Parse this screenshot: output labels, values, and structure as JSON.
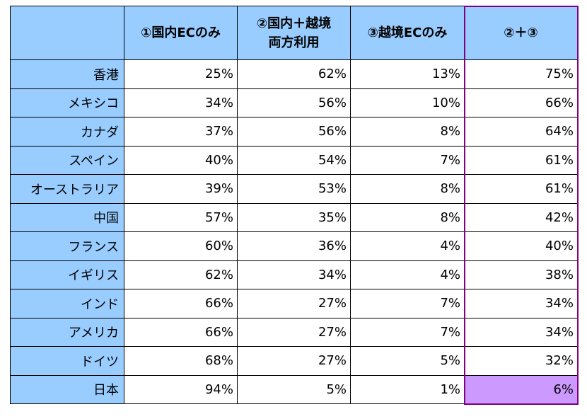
{
  "chart_data": {
    "type": "table",
    "columns": [
      "①国内ECのみ",
      "②国内＋越境\n両方利用",
      "③越境ECのみ",
      "②＋③"
    ],
    "rows": [
      {
        "label": "香港",
        "values": [
          "25%",
          "62%",
          "13%",
          "75%"
        ]
      },
      {
        "label": "メキシコ",
        "values": [
          "34%",
          "56%",
          "10%",
          "66%"
        ]
      },
      {
        "label": "カナダ",
        "values": [
          "37%",
          "56%",
          "8%",
          "64%"
        ]
      },
      {
        "label": "スペイン",
        "values": [
          "40%",
          "54%",
          "7%",
          "61%"
        ]
      },
      {
        "label": "オーストラリア",
        "values": [
          "39%",
          "53%",
          "8%",
          "61%"
        ]
      },
      {
        "label": "中国",
        "values": [
          "57%",
          "35%",
          "8%",
          "42%"
        ]
      },
      {
        "label": "フランス",
        "values": [
          "60%",
          "36%",
          "4%",
          "40%"
        ]
      },
      {
        "label": "イギリス",
        "values": [
          "62%",
          "34%",
          "4%",
          "38%"
        ]
      },
      {
        "label": "インド",
        "values": [
          "66%",
          "27%",
          "7%",
          "34%"
        ]
      },
      {
        "label": "アメリカ",
        "values": [
          "66%",
          "27%",
          "7%",
          "34%"
        ]
      },
      {
        "label": "ドイツ",
        "values": [
          "68%",
          "27%",
          "5%",
          "32%"
        ]
      },
      {
        "label": "日本",
        "values": [
          "94%",
          "5%",
          "1%",
          "6%"
        ]
      }
    ],
    "highlight": {
      "column": "②＋③",
      "row": "日本",
      "frame_color": "#800080",
      "cell_color": "#cc99ff"
    },
    "colors": {
      "header": "#99ccff",
      "label_column": "#99ccff",
      "body": "#ffffff"
    }
  }
}
